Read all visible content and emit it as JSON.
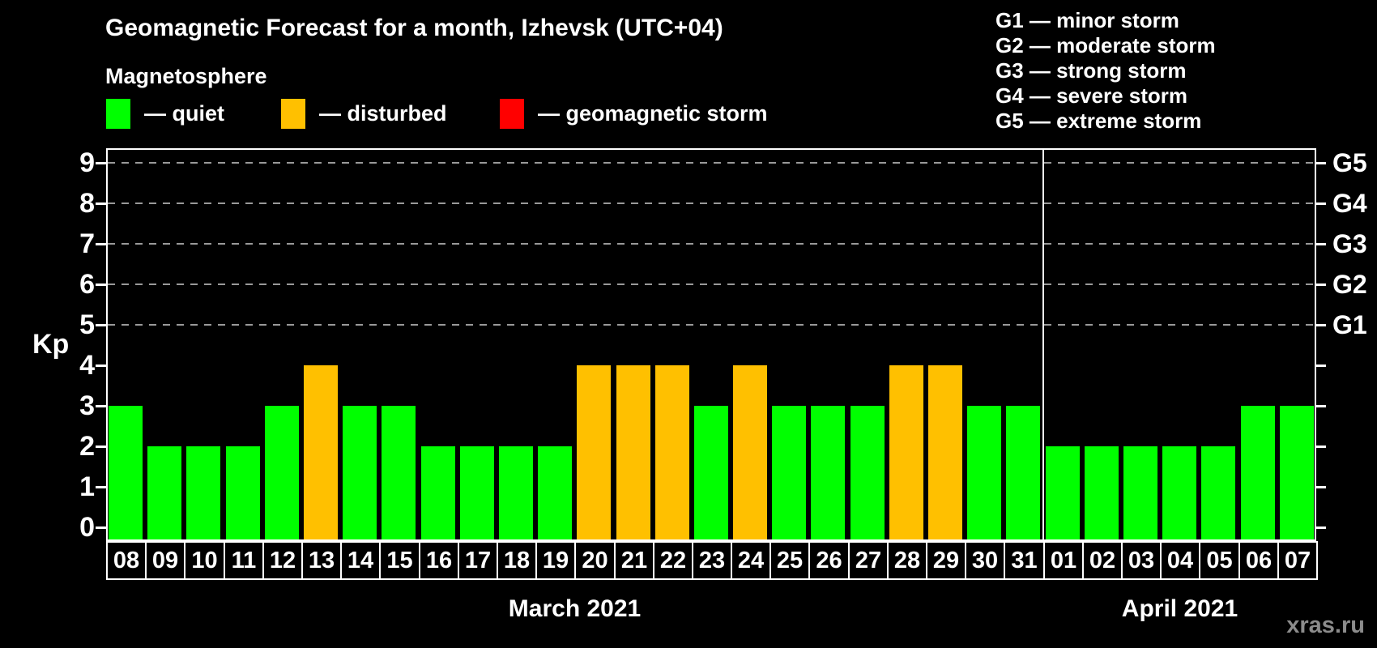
{
  "title": "Geomagnetic Forecast for a month, Izhevsk (UTC+04)",
  "subtitle": "Magnetosphere",
  "legend": {
    "items": [
      {
        "id": "quiet",
        "label": "— quiet"
      },
      {
        "id": "disturbed",
        "label": "— disturbed"
      },
      {
        "id": "storm",
        "label": "— geomagnetic storm"
      }
    ]
  },
  "g_legend": [
    "G1 — minor storm",
    "G2 — moderate storm",
    "G3 — strong storm",
    "G4 — severe storm",
    "G5 — extreme storm"
  ],
  "colors": {
    "quiet": "#00ff00",
    "disturbed": "#ffc000",
    "storm": "#ff0000",
    "background": "#000000",
    "text": "#ffffff",
    "grid": "#999999",
    "frame": "#ffffff",
    "watermark": "#8c8c8c"
  },
  "watermark": "xras.ru",
  "chart_data": {
    "type": "bar",
    "title": "Geomagnetic Forecast for a month, Izhevsk (UTC+04)",
    "ylabel": "Kp",
    "ylim": [
      0,
      9
    ],
    "yticks": [
      0,
      1,
      2,
      3,
      4,
      5,
      6,
      7,
      8,
      9
    ],
    "gridlines_at_kp": [
      5,
      6,
      7,
      8,
      9
    ],
    "grid": "dashed horizontal lines at storm levels only",
    "legend_position": "top-left",
    "right_axis": [
      {
        "kp": 5,
        "label": "G1"
      },
      {
        "kp": 6,
        "label": "G2"
      },
      {
        "kp": 7,
        "label": "G3"
      },
      {
        "kp": 8,
        "label": "G4"
      },
      {
        "kp": 9,
        "label": "G5"
      }
    ],
    "months": [
      {
        "label": "March 2021",
        "days": [
          {
            "day": "08",
            "kp": 3,
            "status": "quiet"
          },
          {
            "day": "09",
            "kp": 2,
            "status": "quiet"
          },
          {
            "day": "10",
            "kp": 2,
            "status": "quiet"
          },
          {
            "day": "11",
            "kp": 2,
            "status": "quiet"
          },
          {
            "day": "12",
            "kp": 3,
            "status": "quiet"
          },
          {
            "day": "13",
            "kp": 4,
            "status": "disturbed"
          },
          {
            "day": "14",
            "kp": 3,
            "status": "quiet"
          },
          {
            "day": "15",
            "kp": 3,
            "status": "quiet"
          },
          {
            "day": "16",
            "kp": 2,
            "status": "quiet"
          },
          {
            "day": "17",
            "kp": 2,
            "status": "quiet"
          },
          {
            "day": "18",
            "kp": 2,
            "status": "quiet"
          },
          {
            "day": "19",
            "kp": 2,
            "status": "quiet"
          },
          {
            "day": "20",
            "kp": 4,
            "status": "disturbed"
          },
          {
            "day": "21",
            "kp": 4,
            "status": "disturbed"
          },
          {
            "day": "22",
            "kp": 4,
            "status": "disturbed"
          },
          {
            "day": "23",
            "kp": 3,
            "status": "quiet"
          },
          {
            "day": "24",
            "kp": 4,
            "status": "disturbed"
          },
          {
            "day": "25",
            "kp": 3,
            "status": "quiet"
          },
          {
            "day": "26",
            "kp": 3,
            "status": "quiet"
          },
          {
            "day": "27",
            "kp": 3,
            "status": "quiet"
          },
          {
            "day": "28",
            "kp": 4,
            "status": "disturbed"
          },
          {
            "day": "29",
            "kp": 4,
            "status": "disturbed"
          },
          {
            "day": "30",
            "kp": 3,
            "status": "quiet"
          },
          {
            "day": "31",
            "kp": 3,
            "status": "quiet"
          }
        ]
      },
      {
        "label": "April 2021",
        "days": [
          {
            "day": "01",
            "kp": 2,
            "status": "quiet"
          },
          {
            "day": "02",
            "kp": 2,
            "status": "quiet"
          },
          {
            "day": "03",
            "kp": 2,
            "status": "quiet"
          },
          {
            "day": "04",
            "kp": 2,
            "status": "quiet"
          },
          {
            "day": "05",
            "kp": 2,
            "status": "quiet"
          },
          {
            "day": "06",
            "kp": 3,
            "status": "quiet"
          },
          {
            "day": "07",
            "kp": 3,
            "status": "quiet"
          }
        ]
      }
    ]
  }
}
